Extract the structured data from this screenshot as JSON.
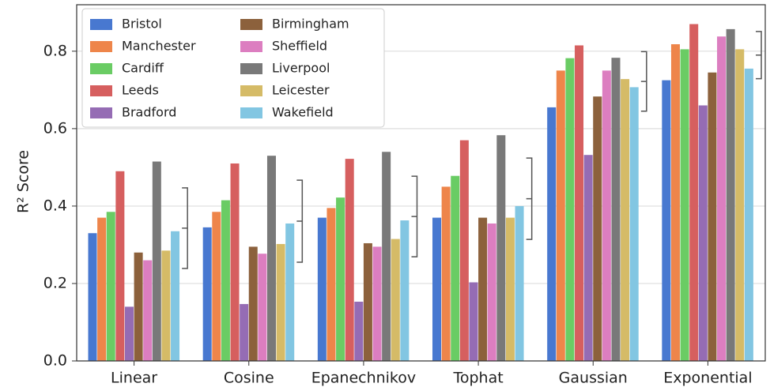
{
  "chart_data": {
    "type": "bar",
    "y_label": "R² Score",
    "categories": [
      "Linear",
      "Cosine",
      "Epanechnikov",
      "Tophat",
      "Gaussian",
      "Exponential"
    ],
    "series": [
      {
        "name": "Bristol",
        "color": "#4878d0",
        "values": [
          0.33,
          0.345,
          0.37,
          0.37,
          0.655,
          0.725
        ]
      },
      {
        "name": "Manchester",
        "color": "#ee854a",
        "values": [
          0.37,
          0.385,
          0.395,
          0.45,
          0.75,
          0.818
        ]
      },
      {
        "name": "Cardiff",
        "color": "#6acc64",
        "values": [
          0.385,
          0.415,
          0.422,
          0.478,
          0.782,
          0.805
        ]
      },
      {
        "name": "Leeds",
        "color": "#d65f5f",
        "values": [
          0.49,
          0.51,
          0.522,
          0.57,
          0.815,
          0.87
        ]
      },
      {
        "name": "Bradford",
        "color": "#956cb4",
        "values": [
          0.14,
          0.147,
          0.153,
          0.203,
          0.532,
          0.66
        ]
      },
      {
        "name": "Birmingham",
        "color": "#8c613c",
        "values": [
          0.28,
          0.295,
          0.304,
          0.37,
          0.683,
          0.745
        ]
      },
      {
        "name": "Sheffield",
        "color": "#dc7ec0",
        "values": [
          0.26,
          0.277,
          0.295,
          0.355,
          0.75,
          0.838
        ]
      },
      {
        "name": "Liverpool",
        "color": "#797979",
        "values": [
          0.515,
          0.53,
          0.54,
          0.583,
          0.783,
          0.857
        ]
      },
      {
        "name": "Leicester",
        "color": "#d5bb67",
        "values": [
          0.285,
          0.302,
          0.315,
          0.37,
          0.728,
          0.805
        ]
      },
      {
        "name": "Wakefield",
        "color": "#82c6e2",
        "values": [
          0.335,
          0.355,
          0.363,
          0.4,
          0.707,
          0.755
        ]
      }
    ],
    "bracket": {
      "color": "#555555",
      "values": [
        0.343,
        0.361,
        0.373,
        0.419,
        0.722,
        0.79
      ],
      "errors": [
        0.104,
        0.106,
        0.104,
        0.105,
        0.077,
        0.061
      ]
    },
    "ylim": [
      0,
      0.92
    ],
    "yticks": [
      {
        "value": 0,
        "label": "0.0"
      },
      0.2,
      0.4,
      0.6,
      0.8
    ],
    "grid": true,
    "legend": "upper left"
  }
}
